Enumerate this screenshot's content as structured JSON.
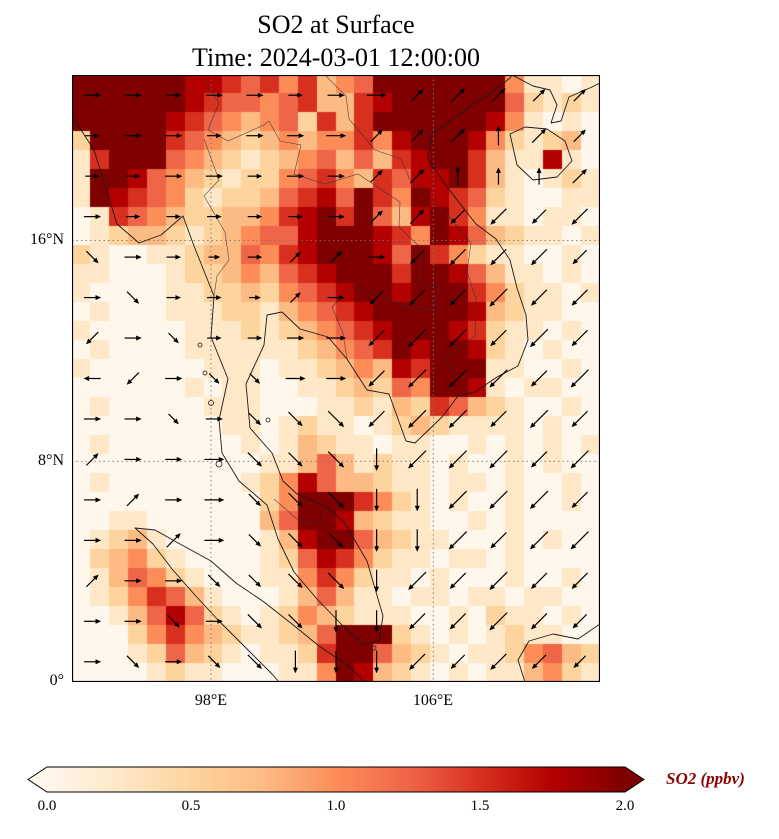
{
  "page": {
    "background": "#ffffff"
  },
  "chart_data": {
    "type": "heatmap",
    "title": "SO2 at Surface",
    "subtitle": "Time: 2024-03-01 12:00:00",
    "variable": "SO2",
    "units": "ppbv",
    "map_extent": {
      "lon_range": [
        93,
        112
      ],
      "lat_range": [
        0,
        22
      ]
    },
    "x_axis": {
      "tick_labels": [
        "98°E",
        "106°E"
      ],
      "tick_lons": [
        98,
        106
      ]
    },
    "y_axis": {
      "tick_labels": [
        "16°N",
        "8°N",
        "0°"
      ],
      "tick_lats": [
        16,
        8,
        0
      ]
    },
    "gridlines": {
      "style": "dotted",
      "color": "#777777"
    },
    "overlay": "wind-quiver-arrows",
    "colorbar": {
      "label": "SO2 (ppbv)",
      "label_color": "#8b0000",
      "tick_labels": [
        "0.0",
        "0.5",
        "1.0",
        "1.5",
        "2.0"
      ],
      "tick_values": [
        0,
        0.5,
        1,
        1.5,
        2
      ],
      "vmin": 0,
      "vmax": 2,
      "extend": "both",
      "colormap": "OrRd"
    },
    "colormap_stops": [
      [
        0,
        "#fff7ec"
      ],
      [
        0.125,
        "#fee8c8"
      ],
      [
        0.25,
        "#fdd49e"
      ],
      [
        0.375,
        "#fdbb84"
      ],
      [
        0.5,
        "#fc8d59"
      ],
      [
        0.625,
        "#ef6548"
      ],
      [
        0.75,
        "#d7301f"
      ],
      [
        0.875,
        "#b30000"
      ],
      [
        1,
        "#7f0000"
      ]
    ],
    "so2_grid": {
      "cols": 28,
      "rows": 32,
      "value_per_digit": 0.25,
      "rows_encoded": [
        "8999887765646345899999841101",
        "9989987655456336799999852121",
        "8999976543452636899999741010",
        "2899965432343446478997421230",
        "1689854321234535367896311710",
        "1887543212245643657786310121",
        "1876542122356758648765210011",
        "0165432233467868537864110110",
        "0123321234557898764875321101",
        "2100112335467898758642110010",
        "1100012234356789869875311010",
        "1000011223245678978986421101",
        "0100011122134567889997321100",
        "1000001112123456798876211010",
        "0100001111112345687987210100",
        "1000000111011234376898110010",
        "0000001011001123254987101100",
        "0100000111000112132653210010",
        "0000000011012110123211110100",
        "0100000001013211011001010101",
        "0000000000113531211010010100",
        "0100000001247533211011010010",
        "0000000000248986421010010010",
        "0011000000359873211001010000",
        "0123100000137985321100010100",
        "0234210000125764211011010000",
        "0135421000114642110100010010",
        "0124653100013531101101101100",
        "0013575210124321110010211010",
        "0002464321123599821010121100",
        "0001253210112698532101124532",
        "0000121100011487321010113421"
      ]
    },
    "wind_quiver": {
      "cols": 13,
      "rows": 15,
      "dir_map": {
        "0": "E",
        "1": "NE",
        "2": "N",
        "3": "NW",
        "4": "W",
        "5": "SW",
        "6": "S",
        "7": "SE"
      },
      "rows_encoded": [
        "04040304040304051415151414",
        "03040403040405141415251514",
        "03030404030404141525242415",
        "04030303030304141555565556",
        "74040302031314045556565655",
        "04740303021304555656575656",
        "54047303030405565757565756",
        "44540473730505565757575657",
        "04047304747576565757565756",
        "14040405757576665757575657",
        "04140405747576666657575756",
        "04041505747575666657565757",
        "14040474747576665756575656",
        "04047404757566665656575655",
        "04740474756666665655565554"
      ]
    }
  }
}
